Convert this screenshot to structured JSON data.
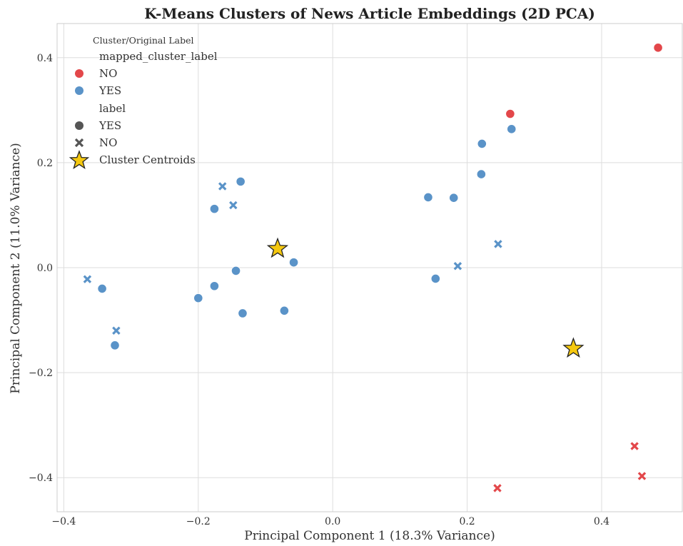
{
  "chart_data": {
    "type": "scatter",
    "title": "K-Means Clusters of News Article Embeddings (2D PCA)",
    "xlabel": "Principal Component 1 (18.3% Variance)",
    "ylabel": "Principal Component 2 (11.0% Variance)",
    "xlim": [
      -0.41,
      0.52
    ],
    "ylim": [
      -0.465,
      0.465
    ],
    "xticks": [
      -0.4,
      -0.2,
      0.0,
      0.2,
      0.4
    ],
    "yticks": [
      -0.4,
      -0.2,
      0.0,
      0.2,
      0.4
    ],
    "xtick_labels": [
      "−0.4",
      "−0.2",
      "0.0",
      "0.2",
      "0.4"
    ],
    "ytick_labels": [
      "−0.4",
      "−0.2",
      "0.0",
      "0.2",
      "0.4"
    ],
    "grid": true,
    "colors": {
      "NO": "#e3474a",
      "YES": "#5a93c8",
      "centroid_fill": "#f5c80f",
      "centroid_edge": "#222222",
      "legend_marker": "#555555"
    },
    "legend": {
      "title": "Cluster/Original Label",
      "hue_title": "mapped_cluster_label",
      "hue_entries": [
        "NO",
        "YES"
      ],
      "style_title": "label",
      "style_entries": [
        {
          "label": "YES",
          "marker": "circle"
        },
        {
          "label": "NO",
          "marker": "x"
        }
      ],
      "centroid_label": "Cluster Centroids",
      "placement": "top-left"
    },
    "points": [
      {
        "x": -0.365,
        "y": -0.022,
        "cluster": "YES",
        "label": "NO"
      },
      {
        "x": -0.343,
        "y": -0.04,
        "cluster": "YES",
        "label": "YES"
      },
      {
        "x": -0.322,
        "y": -0.12,
        "cluster": "YES",
        "label": "NO"
      },
      {
        "x": -0.324,
        "y": -0.148,
        "cluster": "YES",
        "label": "YES"
      },
      {
        "x": -0.2,
        "y": -0.058,
        "cluster": "YES",
        "label": "YES"
      },
      {
        "x": -0.176,
        "y": 0.112,
        "cluster": "YES",
        "label": "YES"
      },
      {
        "x": -0.164,
        "y": 0.155,
        "cluster": "YES",
        "label": "NO"
      },
      {
        "x": -0.148,
        "y": 0.119,
        "cluster": "YES",
        "label": "NO"
      },
      {
        "x": -0.137,
        "y": 0.164,
        "cluster": "YES",
        "label": "YES"
      },
      {
        "x": -0.176,
        "y": -0.035,
        "cluster": "YES",
        "label": "YES"
      },
      {
        "x": -0.144,
        "y": -0.006,
        "cluster": "YES",
        "label": "YES"
      },
      {
        "x": -0.134,
        "y": -0.087,
        "cluster": "YES",
        "label": "YES"
      },
      {
        "x": -0.072,
        "y": -0.082,
        "cluster": "YES",
        "label": "YES"
      },
      {
        "x": -0.058,
        "y": 0.01,
        "cluster": "YES",
        "label": "YES"
      },
      {
        "x": 0.142,
        "y": 0.134,
        "cluster": "YES",
        "label": "YES"
      },
      {
        "x": 0.18,
        "y": 0.133,
        "cluster": "YES",
        "label": "YES"
      },
      {
        "x": 0.153,
        "y": -0.021,
        "cluster": "YES",
        "label": "YES"
      },
      {
        "x": 0.186,
        "y": 0.003,
        "cluster": "YES",
        "label": "NO"
      },
      {
        "x": 0.221,
        "y": 0.178,
        "cluster": "YES",
        "label": "YES"
      },
      {
        "x": 0.222,
        "y": 0.236,
        "cluster": "YES",
        "label": "YES"
      },
      {
        "x": 0.246,
        "y": 0.045,
        "cluster": "YES",
        "label": "NO"
      },
      {
        "x": 0.264,
        "y": 0.293,
        "cluster": "NO",
        "label": "YES"
      },
      {
        "x": 0.266,
        "y": 0.264,
        "cluster": "YES",
        "label": "YES"
      },
      {
        "x": 0.484,
        "y": 0.419,
        "cluster": "NO",
        "label": "YES"
      },
      {
        "x": 0.449,
        "y": -0.34,
        "cluster": "NO",
        "label": "NO"
      },
      {
        "x": 0.46,
        "y": -0.397,
        "cluster": "NO",
        "label": "NO"
      },
      {
        "x": 0.245,
        "y": -0.42,
        "cluster": "NO",
        "label": "NO"
      }
    ],
    "centroids": [
      {
        "x": -0.082,
        "y": 0.036
      },
      {
        "x": 0.358,
        "y": -0.154
      }
    ]
  }
}
